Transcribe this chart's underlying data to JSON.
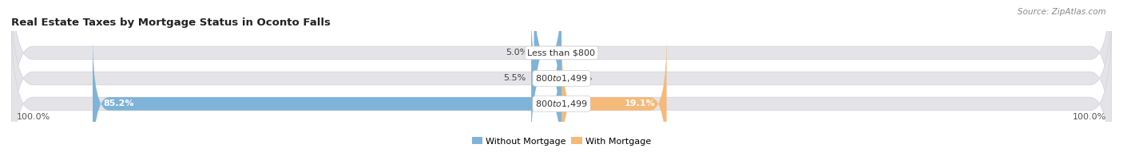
{
  "title": "Real Estate Taxes by Mortgage Status in Oconto Falls",
  "source": "Source: ZipAtlas.com",
  "bars": [
    {
      "label": "Less than $800",
      "without_mortgage": 5.0,
      "with_mortgage": 0.0
    },
    {
      "label": "$800 to $1,499",
      "without_mortgage": 5.5,
      "with_mortgage": 0.0
    },
    {
      "label": "$800 to $1,499",
      "without_mortgage": 85.2,
      "with_mortgage": 19.1
    }
  ],
  "color_without": "#7fb3d8",
  "color_with": "#f5b97a",
  "bar_bg_color": "#e4e4e8",
  "bar_bg_outline": "#d0d0d8",
  "x_left_label": "100.0%",
  "x_right_label": "100.0%",
  "legend_without": "Without Mortgage",
  "legend_with": "With Mortgage",
  "title_fontsize": 9.5,
  "source_fontsize": 7.5,
  "tick_fontsize": 8,
  "label_fontsize": 8
}
